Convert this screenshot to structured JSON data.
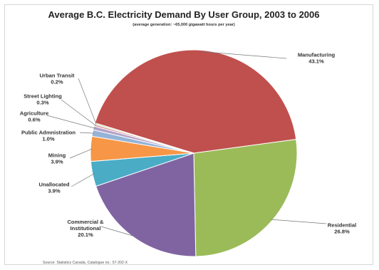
{
  "chart_data": {
    "type": "pie",
    "title": "Average B.C. Electricity Demand By User Group, 2003 to 2006",
    "subtitle": "(average generation: ~65,000 gigawatt hours per year)",
    "source": "Source: Statistics Canada, Catalogue no.: 57-202-X",
    "slices": [
      {
        "name": "Manufacturing",
        "value": 43.1,
        "label": "43.1%",
        "color": "#c0504d"
      },
      {
        "name": "Residential",
        "value": 26.8,
        "label": "26.8%",
        "color": "#9bbb59"
      },
      {
        "name": "Commercial & Institutional",
        "value": 20.1,
        "label": "20.1%",
        "color": "#8064a2"
      },
      {
        "name": "Unallocated",
        "value": 3.9,
        "label": "3.9%",
        "color": "#4bacc6"
      },
      {
        "name": "Mining",
        "value": 3.9,
        "label": "3.9%",
        "color": "#f79646"
      },
      {
        "name": "Public Admnistration",
        "value": 1.0,
        "label": "1.0%",
        "color": "#95b3d7"
      },
      {
        "name": "Agriculture",
        "value": 0.6,
        "label": "0.6%",
        "color": "#b2a1c7"
      },
      {
        "name": "Street Lighting",
        "value": 0.3,
        "label": "0.3%",
        "color": "#d99694"
      },
      {
        "name": "Urban Transit",
        "value": 0.2,
        "label": "0.2%",
        "color": "#c3d69b"
      }
    ]
  }
}
